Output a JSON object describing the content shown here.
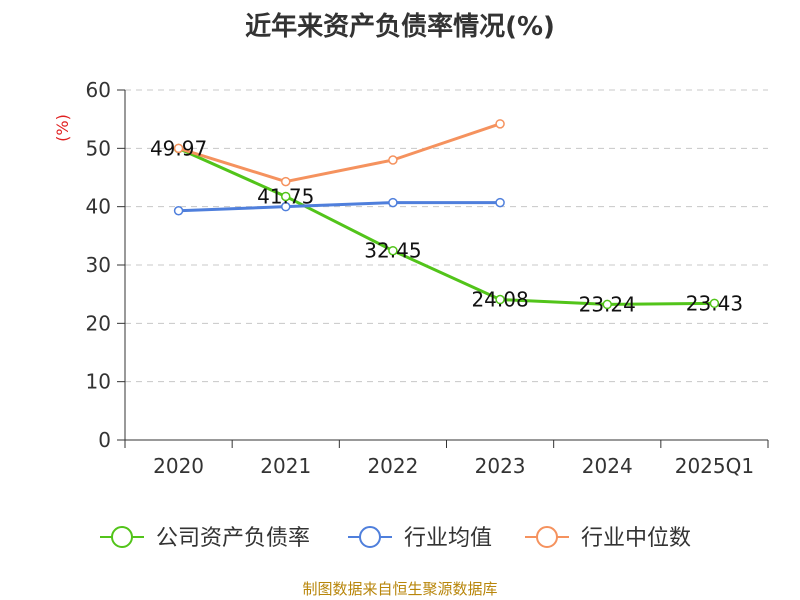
{
  "chart_data": {
    "type": "line",
    "title": "近年来资产负债率情况(%)",
    "ylabel": "(%)",
    "xlabel": "",
    "categories": [
      "2020",
      "2021",
      "2022",
      "2023",
      "2024",
      "2025Q1"
    ],
    "ylim": [
      0,
      60
    ],
    "yticks": [
      0,
      10,
      20,
      30,
      40,
      50,
      60
    ],
    "grid": true,
    "legend_position": "bottom",
    "series": [
      {
        "name": "公司资产负债率",
        "color": "#52c41a",
        "values": [
          49.97,
          41.75,
          32.45,
          24.08,
          23.24,
          23.43
        ],
        "labels": [
          "49.97",
          "41.75",
          "32.45",
          "24.08",
          "23.24",
          "23.43"
        ]
      },
      {
        "name": "行业均值",
        "color": "#4f7fdc",
        "values": [
          39.3,
          40.0,
          40.7,
          40.7,
          null,
          null
        ]
      },
      {
        "name": "行业中位数",
        "color": "#f5925e",
        "values": [
          50.0,
          44.3,
          48.0,
          54.2,
          null,
          null
        ]
      }
    ]
  },
  "footer": {
    "source": "制图数据来自恒生聚源数据库"
  }
}
